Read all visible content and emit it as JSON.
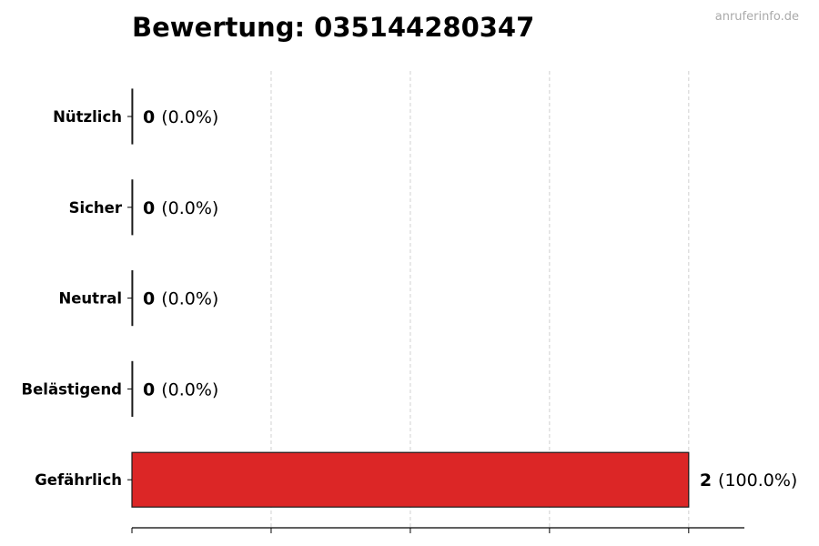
{
  "watermark": "anruferinfo.de",
  "chart_data": {
    "type": "bar",
    "orientation": "horizontal",
    "title": "Bewertung: 035144280347",
    "xlabel": "",
    "ylabel": "",
    "categories": [
      "Nützlich",
      "Sicher",
      "Neutral",
      "Belästigend",
      "Gefährlich"
    ],
    "values": [
      0,
      0,
      0,
      0,
      2
    ],
    "value_labels": [
      "0",
      "0",
      "0",
      "0",
      "2"
    ],
    "percent_labels": [
      "(0.0%)",
      "(0.0%)",
      "(0.0%)",
      "(0.0%)",
      "(100.0%)"
    ],
    "xlim": [
      0,
      2.2
    ],
    "x_ticks": [
      0,
      0.5,
      1,
      1.5,
      2
    ],
    "x_tick_labels_shown": false,
    "grid": "vertical dashed",
    "bar_color": "#dc2626",
    "bar_edge_color": "#1a1a1a"
  }
}
